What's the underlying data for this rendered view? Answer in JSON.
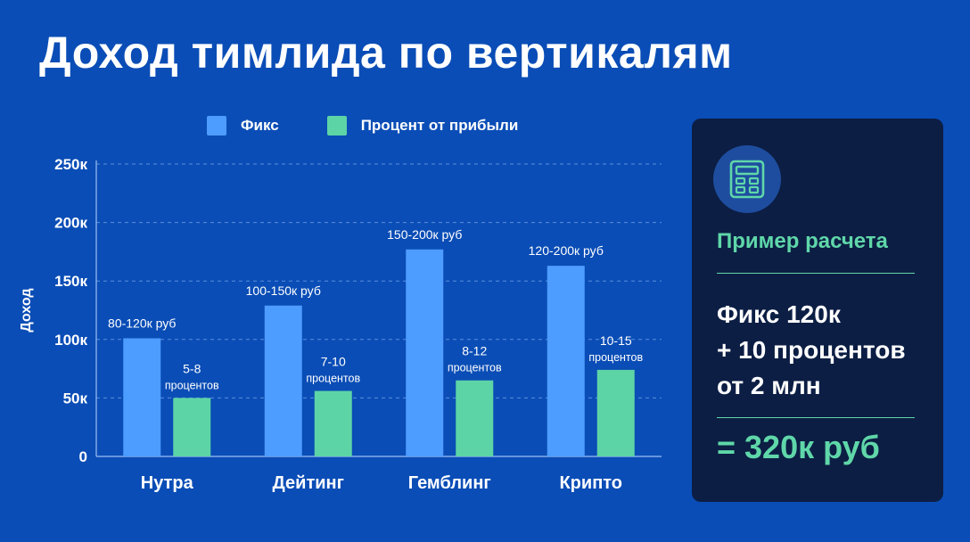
{
  "page": {
    "title": "Доход тимлида по вертикалям"
  },
  "colors": {
    "background": "#0a4db6",
    "fix": "#4d9cff",
    "percent": "#5dd4a6",
    "panel": "#0c1e44",
    "accent": "#5fd7a9"
  },
  "chart_data": {
    "type": "bar",
    "title": "",
    "xlabel": "",
    "ylabel": "Доход",
    "ylim": [
      0,
      250
    ],
    "yticks": [
      0,
      50,
      100,
      150,
      200,
      250
    ],
    "ytick_labels": [
      "0",
      "50к",
      "100к",
      "150к",
      "200к",
      "250к"
    ],
    "grid": true,
    "legend_position": "top",
    "categories": [
      "Нутра",
      "Дейтинг",
      "Гемблинг",
      "Крипто"
    ],
    "series": [
      {
        "name": "Фикс",
        "color": "#4d9cff",
        "values": [
          101,
          129,
          177,
          163
        ],
        "labels": [
          [
            "80-120к руб"
          ],
          [
            "100-150к руб"
          ],
          [
            "150-200к руб"
          ],
          [
            "120-200к руб"
          ]
        ]
      },
      {
        "name": "Процент от прибыли",
        "color": "#5dd4a6",
        "values": [
          50,
          56,
          65,
          74
        ],
        "labels": [
          [
            "5-8",
            "процентов"
          ],
          [
            "7-10",
            "процентов"
          ],
          [
            "8-12",
            "процентов"
          ],
          [
            "10-15",
            "процентов"
          ]
        ]
      }
    ]
  },
  "panel": {
    "icon": "calculator-icon",
    "heading": "Пример расчета",
    "lines": [
      "Фикс 120к",
      "+ 10 процентов",
      "от 2 млн"
    ],
    "result": "= 320к руб"
  }
}
